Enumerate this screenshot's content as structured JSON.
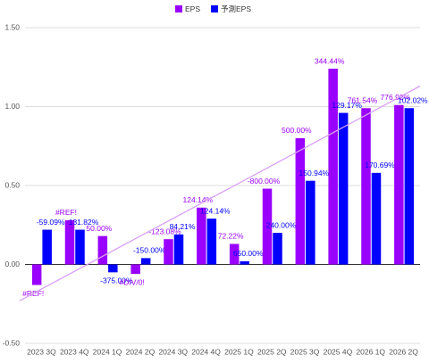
{
  "chart_data": {
    "type": "bar",
    "categories": [
      "2023 3Q",
      "2023 4Q",
      "2024 1Q",
      "2024 2Q",
      "2024 3Q",
      "2024 4Q",
      "2025 1Q",
      "2025 2Q",
      "2025 3Q",
      "2025 4Q",
      "2026 1Q",
      "2026 2Q"
    ],
    "series": [
      {
        "name": "EPS",
        "color": "#9900ff",
        "values": [
          -0.13,
          0.28,
          0.18,
          -0.06,
          0.16,
          0.36,
          0.13,
          0.48,
          0.8,
          1.24,
          0.99,
          1.01
        ],
        "point_labels": [
          "#REF!",
          "#REF!",
          "50.00%",
          "#DIV/0!",
          "-123.08%",
          "124.14%",
          "72.22%",
          "-800.00%",
          "500.00%",
          "344.44%",
          "761.54%",
          "776.92%"
        ]
      },
      {
        "name": "予測EPS",
        "color": "#0000ff",
        "values": [
          0.22,
          0.22,
          -0.05,
          0.04,
          0.19,
          0.29,
          0.02,
          0.2,
          0.53,
          0.96,
          0.58,
          0.99
        ],
        "point_labels": [
          "-59.09%",
          "131.82%",
          "-375.00%",
          "-150.00%",
          "84.21%",
          "124.14%",
          "650.00%",
          "240.00%",
          "150.94%",
          "129.17%",
          "170.69%",
          "102.02%"
        ]
      }
    ],
    "trendline": {
      "color": "#d9a0f5",
      "values": [
        -0.23,
        1.13
      ]
    },
    "ylim": [
      -0.5,
      1.5
    ],
    "yticks": [
      {
        "value": -0.5,
        "label": "-0.50"
      },
      {
        "value": 0,
        "label": "0.00"
      },
      {
        "value": 0.5,
        "label": "0.50"
      },
      {
        "value": 1,
        "label": "1.00"
      },
      {
        "value": 1.5,
        "label": "1.50"
      }
    ],
    "grid": true,
    "legend": "top"
  }
}
